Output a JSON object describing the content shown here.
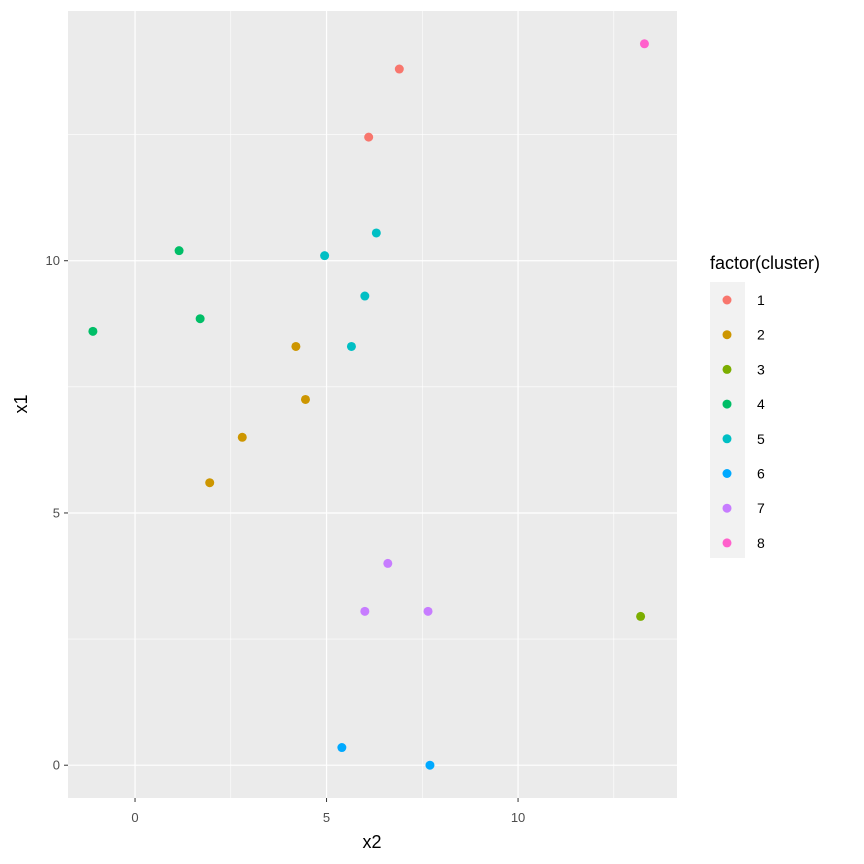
{
  "chart_data": {
    "type": "scatter",
    "xlabel": "x2",
    "ylabel": "x1",
    "xlim": [
      -1.75,
      14.15
    ],
    "ylim": [
      -0.65,
      14.95
    ],
    "x_ticks": [
      0,
      5,
      10
    ],
    "y_ticks": [
      0,
      5,
      10
    ],
    "x_minor": [
      2.5,
      7.5,
      12.5
    ],
    "y_minor": [
      2.5,
      7.5,
      12.5
    ],
    "grid": true,
    "legend": {
      "title": "factor(cluster)",
      "placement": "right"
    },
    "series": [
      {
        "name": "1",
        "color": "#F8766D",
        "points": [
          {
            "x": 6.9,
            "y": 13.8
          },
          {
            "x": 6.1,
            "y": 12.45
          }
        ]
      },
      {
        "name": "2",
        "color": "#CD9600",
        "points": [
          {
            "x": 4.2,
            "y": 8.3
          },
          {
            "x": 4.45,
            "y": 7.25
          },
          {
            "x": 2.8,
            "y": 6.5
          },
          {
            "x": 1.95,
            "y": 5.6
          }
        ]
      },
      {
        "name": "3",
        "color": "#7CAE00",
        "points": [
          {
            "x": 13.2,
            "y": 2.95
          }
        ]
      },
      {
        "name": "4",
        "color": "#00BE67",
        "points": [
          {
            "x": 1.15,
            "y": 10.2
          },
          {
            "x": 1.7,
            "y": 8.85
          },
          {
            "x": -1.1,
            "y": 8.6
          }
        ]
      },
      {
        "name": "5",
        "color": "#00BFC4",
        "points": [
          {
            "x": 6.3,
            "y": 10.55
          },
          {
            "x": 4.95,
            "y": 10.1
          },
          {
            "x": 6.0,
            "y": 9.3
          },
          {
            "x": 5.65,
            "y": 8.3
          }
        ]
      },
      {
        "name": "6",
        "color": "#00A9FF",
        "points": [
          {
            "x": 5.4,
            "y": 0.35
          },
          {
            "x": 7.7,
            "y": 0.0
          }
        ]
      },
      {
        "name": "7",
        "color": "#C77CFF",
        "points": [
          {
            "x": 6.6,
            "y": 4.0
          },
          {
            "x": 6.0,
            "y": 3.05
          },
          {
            "x": 7.65,
            "y": 3.05
          }
        ]
      },
      {
        "name": "8",
        "color": "#FF61CC",
        "points": [
          {
            "x": 13.3,
            "y": 14.3
          }
        ]
      }
    ]
  }
}
